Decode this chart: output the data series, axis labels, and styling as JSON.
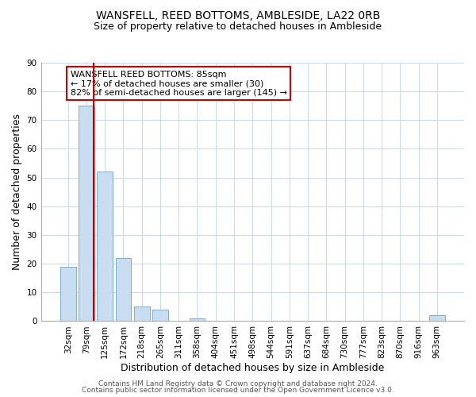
{
  "title": "WANSFELL, REED BOTTOMS, AMBLESIDE, LA22 0RB",
  "subtitle": "Size of property relative to detached houses in Ambleside",
  "xlabel": "Distribution of detached houses by size in Ambleside",
  "ylabel": "Number of detached properties",
  "bar_labels": [
    "32sqm",
    "79sqm",
    "125sqm",
    "172sqm",
    "218sqm",
    "265sqm",
    "311sqm",
    "358sqm",
    "404sqm",
    "451sqm",
    "498sqm",
    "544sqm",
    "591sqm",
    "637sqm",
    "684sqm",
    "730sqm",
    "777sqm",
    "823sqm",
    "870sqm",
    "916sqm",
    "963sqm"
  ],
  "bar_values": [
    19,
    75,
    52,
    22,
    5,
    4,
    0,
    1,
    0,
    0,
    0,
    0,
    0,
    0,
    0,
    0,
    0,
    0,
    0,
    0,
    2
  ],
  "bar_color": "#c9ddf0",
  "bar_edge_color": "#7bafd4",
  "vline_position": 1.5,
  "vline_color": "#cc0000",
  "annotation_text": "WANSFELL REED BOTTOMS: 85sqm\n← 17% of detached houses are smaller (30)\n82% of semi-detached houses are larger (145) →",
  "annotation_box_color": "#ffffff",
  "annotation_box_edge": "#cc0000",
  "ylim": [
    0,
    90
  ],
  "yticks": [
    0,
    10,
    20,
    30,
    40,
    50,
    60,
    70,
    80,
    90
  ],
  "footer1": "Contains HM Land Registry data © Crown copyright and database right 2024.",
  "footer2": "Contains public sector information licensed under the Open Government Licence v3.0.",
  "bg_color": "#ffffff",
  "grid_color": "#c8d8ec",
  "title_fontsize": 10,
  "subtitle_fontsize": 9,
  "axis_label_fontsize": 9,
  "tick_fontsize": 7.5,
  "annotation_fontsize": 8,
  "footer_fontsize": 6.5
}
